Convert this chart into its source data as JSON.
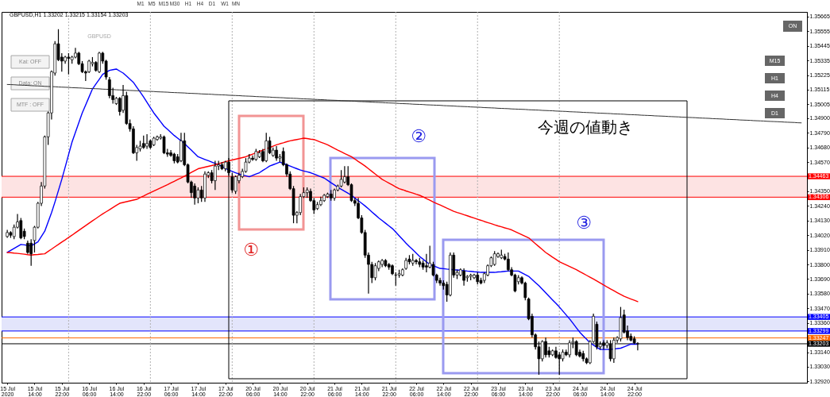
{
  "chart_data": {
    "type": "candlestick",
    "title": "GBPUSD,H1 1.33202 1.33215 1.33154 1.33203",
    "color": "#000000",
    "categories": [
      "15 Jul 2020",
      null,
      null,
      null,
      null,
      null,
      null,
      null,
      "15 Jul 14:00",
      null,
      null,
      null,
      null,
      null,
      null,
      null,
      "15 Jul 22:00",
      null,
      null,
      null,
      null,
      null,
      null,
      null,
      "16 Jul 06:00",
      null,
      null,
      null,
      null,
      null,
      null,
      null,
      "16 Jul 14:00",
      null,
      null,
      null,
      null,
      null,
      null,
      null,
      "16 Jul 22:00",
      null,
      null,
      null,
      null,
      null,
      null,
      null,
      "17 Jul 06:00",
      null,
      null,
      null,
      null,
      null,
      null,
      null,
      "17 Jul 14:00",
      null,
      null,
      null,
      null,
      null,
      null,
      null,
      "17 Jul 22:00",
      null,
      null,
      null,
      null,
      null,
      null,
      null,
      "20 Jul 06:00",
      null,
      null,
      null,
      null,
      null,
      null,
      null,
      "20 Jul 14:00",
      null,
      null,
      null,
      null,
      null,
      null,
      null,
      "20 Jul 22:00",
      null,
      null,
      null,
      null,
      null,
      null,
      null,
      "21 Jul 06:00",
      null,
      null,
      null,
      null,
      null,
      null,
      null,
      "21 Jul 14:00",
      null,
      null,
      null,
      null,
      null,
      null,
      null,
      "21 Jul 22:00",
      null,
      null,
      null,
      null,
      null,
      null,
      null,
      "22 Jul 06:00",
      null,
      null,
      null,
      null,
      null,
      null,
      null,
      "22 Jul 14:00",
      null,
      null,
      null,
      null,
      null,
      null,
      null,
      "22 Jul 22:00",
      null,
      null,
      null,
      null,
      null,
      null,
      null,
      "23 Jul 06:00",
      null,
      null,
      null,
      null,
      null,
      null,
      null,
      "23 Jul 14:00",
      null,
      null,
      null,
      null,
      null,
      null,
      null,
      "23 Jul 22:00",
      null,
      null,
      null,
      null,
      null,
      null,
      null,
      "24 Jul 06:00",
      null,
      null,
      null,
      null,
      null,
      null,
      null,
      "24 Jul 14:00",
      null,
      null,
      null,
      null,
      null,
      null,
      null,
      "24 Jul 22:00",
      null,
      null,
      null,
      null,
      null,
      null,
      null,
      null,
      null,
      null,
      null,
      null,
      null,
      null,
      null,
      null,
      null,
      null,
      null,
      null,
      null,
      null,
      null,
      null,
      null,
      null,
      null,
      null,
      null,
      null,
      null,
      null,
      null,
      null,
      null,
      null,
      null,
      null,
      null,
      null,
      null,
      null,
      null,
      null,
      null,
      null,
      null,
      null,
      null
    ],
    "ohlc": [
      [
        1.3401,
        1.3406,
        1.34,
        1.3404
      ],
      [
        1.3404,
        1.3405,
        1.34,
        1.3402
      ],
      [
        1.3401,
        1.341,
        1.3399,
        1.3408
      ],
      [
        1.3408,
        1.3418,
        1.3407,
        1.3412
      ],
      [
        1.3413,
        1.3415,
        1.3399,
        1.34
      ],
      [
        1.3405,
        1.3407,
        1.3399,
        1.3401
      ],
      [
        1.3396,
        1.3398,
        1.3388,
        1.3389
      ],
      [
        1.3396,
        1.3399,
        1.3379,
        1.3388
      ],
      [
        1.3398,
        1.3409,
        1.3389,
        1.3408
      ],
      [
        1.3408,
        1.3427,
        1.3407,
        1.3426
      ],
      [
        1.3426,
        1.3442,
        1.3424,
        1.3439
      ],
      [
        1.3439,
        1.3477,
        1.3437,
        1.3476
      ],
      [
        1.3476,
        1.3495,
        1.347,
        1.3494
      ],
      [
        1.3494,
        1.3526,
        1.3489,
        1.3525
      ],
      [
        1.3524,
        1.3548,
        1.3522,
        1.3546
      ],
      [
        1.3546,
        1.3557,
        1.3533,
        1.3534
      ],
      [
        1.3536,
        1.3539,
        1.3525,
        1.3533
      ],
      [
        1.3533,
        1.3537,
        1.3531,
        1.3536
      ],
      [
        1.3536,
        1.3539,
        1.3523,
        1.3535
      ],
      [
        1.3534,
        1.3537,
        1.3531,
        1.3536
      ],
      [
        1.3536,
        1.3543,
        1.3535,
        1.3539
      ],
      [
        1.3539,
        1.354,
        1.353,
        1.3531
      ],
      [
        1.3531,
        1.3533,
        1.3524,
        1.3525
      ],
      [
        1.3525,
        1.3526,
        1.3518,
        1.3524
      ],
      [
        1.3525,
        1.3534,
        1.3524,
        1.3533
      ],
      [
        1.3531,
        1.3536,
        1.3529,
        1.3532
      ],
      [
        1.3532,
        1.3533,
        1.3525,
        1.3526
      ],
      [
        1.3525,
        1.354,
        1.3524,
        1.3539
      ],
      [
        1.3539,
        1.354,
        1.3531,
        1.3533
      ],
      [
        1.3533,
        1.3534,
        1.3519,
        1.3521
      ],
      [
        1.3519,
        1.3521,
        1.3505,
        1.3507
      ],
      [
        1.3507,
        1.3513,
        1.3501,
        1.3504
      ],
      [
        1.3501,
        1.3506,
        1.35,
        1.3505
      ],
      [
        1.3505,
        1.3506,
        1.3492,
        1.3495
      ],
      [
        1.3496,
        1.3515,
        1.3494,
        1.3507
      ],
      [
        1.3507,
        1.351,
        1.3485,
        1.3486
      ],
      [
        1.3486,
        1.3489,
        1.348,
        1.3482
      ],
      [
        1.3482,
        1.3484,
        1.3463,
        1.3464
      ],
      [
        1.3464,
        1.347,
        1.3458,
        1.3468
      ],
      [
        1.3467,
        1.3473,
        1.3465,
        1.3469
      ],
      [
        1.3471,
        1.3477,
        1.3467,
        1.3468
      ],
      [
        1.3469,
        1.3478,
        1.3467,
        1.3471
      ],
      [
        1.3473,
        1.3474,
        1.3467,
        1.3468
      ],
      [
        1.347,
        1.3476,
        1.3469,
        1.3475
      ],
      [
        1.3474,
        1.3477,
        1.3473,
        1.3476
      ],
      [
        1.3475,
        1.3478,
        1.3474,
        1.3476
      ],
      [
        1.3476,
        1.3477,
        1.3463,
        1.3464
      ],
      [
        1.3464,
        1.3467,
        1.3461,
        1.3463
      ],
      [
        1.3464,
        1.3466,
        1.3461,
        1.3462
      ],
      [
        1.3463,
        1.3464,
        1.3456,
        1.3458
      ],
      [
        1.3461,
        1.3463,
        1.3456,
        1.3457
      ],
      [
        1.3458,
        1.3479,
        1.3457,
        1.3473
      ],
      [
        1.3473,
        1.3479,
        1.3454,
        1.3455
      ],
      [
        1.3455,
        1.3456,
        1.3441,
        1.3442
      ],
      [
        1.3442,
        1.3443,
        1.343,
        1.3434
      ],
      [
        1.3439,
        1.3441,
        1.3425,
        1.343
      ],
      [
        1.343,
        1.3438,
        1.3426,
        1.3436
      ],
      [
        1.3436,
        1.3439,
        1.3427,
        1.343
      ],
      [
        1.343,
        1.345,
        1.3427,
        1.3448
      ],
      [
        1.3447,
        1.345,
        1.3445,
        1.3449
      ],
      [
        1.3449,
        1.3451,
        1.3441,
        1.3443
      ],
      [
        1.3443,
        1.3458,
        1.3436,
        1.3454
      ],
      [
        1.3454,
        1.3458,
        1.3451,
        1.3455
      ],
      [
        1.3455,
        1.3457,
        1.3451,
        1.3452
      ],
      [
        1.3452,
        1.3458,
        1.345,
        1.3457
      ],
      [
        1.3457,
        1.346,
        1.3447,
        1.3449
      ],
      [
        1.3446,
        1.3449,
        1.3434,
        1.3436
      ],
      [
        1.3435,
        1.3447,
        1.3433,
        1.3446
      ],
      [
        1.3443,
        1.3449,
        1.3441,
        1.3447
      ],
      [
        1.3446,
        1.3452,
        1.3445,
        1.345
      ],
      [
        1.345,
        1.346,
        1.3449,
        1.3457
      ],
      [
        1.3457,
        1.3463,
        1.3456,
        1.346
      ],
      [
        1.346,
        1.3462,
        1.3458,
        1.3459
      ],
      [
        1.3459,
        1.3467,
        1.3458,
        1.3465
      ],
      [
        1.3461,
        1.3466,
        1.346,
        1.3464
      ],
      [
        1.3465,
        1.3467,
        1.3457,
        1.3458
      ],
      [
        1.3458,
        1.3479,
        1.3457,
        1.3473
      ],
      [
        1.3473,
        1.3476,
        1.3463,
        1.3464
      ],
      [
        1.3462,
        1.3468,
        1.3461,
        1.3466
      ],
      [
        1.3466,
        1.3469,
        1.3458,
        1.346
      ],
      [
        1.346,
        1.3463,
        1.3457,
        1.3461
      ],
      [
        1.3465,
        1.3468,
        1.3454,
        1.3455
      ],
      [
        1.3455,
        1.3456,
        1.3446,
        1.3448
      ],
      [
        1.3448,
        1.345,
        1.3436,
        1.3437
      ],
      [
        1.3437,
        1.3439,
        1.3411,
        1.3417
      ],
      [
        1.3417,
        1.342,
        1.3411,
        1.3419
      ],
      [
        1.3419,
        1.3433,
        1.3417,
        1.3431
      ],
      [
        1.3431,
        1.3438,
        1.343,
        1.3434
      ],
      [
        1.3434,
        1.3438,
        1.343,
        1.3436
      ],
      [
        1.3435,
        1.3437,
        1.3427,
        1.3428
      ],
      [
        1.3428,
        1.343,
        1.3418,
        1.3421
      ],
      [
        1.3422,
        1.3427,
        1.3421,
        1.3425
      ],
      [
        1.3425,
        1.3431,
        1.3424,
        1.3428
      ],
      [
        1.3428,
        1.3433,
        1.3427,
        1.3432
      ],
      [
        1.3431,
        1.3434,
        1.343,
        1.3433
      ],
      [
        1.3433,
        1.3436,
        1.3428,
        1.343
      ],
      [
        1.343,
        1.3437,
        1.3428,
        1.3436
      ],
      [
        1.3436,
        1.344,
        1.3435,
        1.3439
      ],
      [
        1.3439,
        1.3451,
        1.3438,
        1.3444
      ],
      [
        1.3442,
        1.3454,
        1.3441,
        1.3446
      ],
      [
        1.3446,
        1.3454,
        1.3439,
        1.344
      ],
      [
        1.344,
        1.3441,
        1.3427,
        1.3428
      ],
      [
        1.3428,
        1.343,
        1.3424,
        1.3426
      ],
      [
        1.3426,
        1.343,
        1.3414,
        1.3415
      ],
      [
        1.3415,
        1.3417,
        1.3403,
        1.3404
      ],
      [
        1.3404,
        1.3406,
        1.3385,
        1.3387
      ],
      [
        1.3387,
        1.3389,
        1.3358,
        1.338
      ],
      [
        1.338,
        1.3382,
        1.3366,
        1.337
      ],
      [
        1.337,
        1.3381,
        1.3368,
        1.3379
      ],
      [
        1.3377,
        1.3383,
        1.3375,
        1.3382
      ],
      [
        1.338,
        1.3384,
        1.3378,
        1.3383
      ],
      [
        1.3383,
        1.3384,
        1.3378,
        1.3379
      ],
      [
        1.338,
        1.3381,
        1.3376,
        1.3378
      ],
      [
        1.3379,
        1.338,
        1.3372,
        1.3373
      ],
      [
        1.3372,
        1.3374,
        1.3364,
        1.3372
      ],
      [
        1.3372,
        1.3376,
        1.337,
        1.3373
      ],
      [
        1.3372,
        1.3377,
        1.3371,
        1.3376
      ],
      [
        1.3377,
        1.3385,
        1.3376,
        1.3383
      ],
      [
        1.3384,
        1.3387,
        1.338,
        1.3382
      ],
      [
        1.3381,
        1.3388,
        1.3379,
        1.3383
      ],
      [
        1.3383,
        1.3384,
        1.338,
        1.3382
      ],
      [
        1.3382,
        1.3385,
        1.3378,
        1.338
      ],
      [
        1.3381,
        1.3383,
        1.3376,
        1.3378
      ],
      [
        1.3379,
        1.3388,
        1.3374,
        1.3378
      ],
      [
        1.3378,
        1.3394,
        1.3377,
        1.3381
      ],
      [
        1.338,
        1.3382,
        1.3371,
        1.3372
      ],
      [
        1.3372,
        1.3373,
        1.3366,
        1.3368
      ],
      [
        1.3368,
        1.337,
        1.3364,
        1.3366
      ],
      [
        1.3366,
        1.3368,
        1.3361,
        1.3364
      ],
      [
        1.3365,
        1.3367,
        1.3352,
        1.3357
      ],
      [
        1.3357,
        1.3389,
        1.3356,
        1.3387
      ],
      [
        1.3387,
        1.3389,
        1.337,
        1.3372
      ],
      [
        1.3372,
        1.3376,
        1.3369,
        1.3374
      ],
      [
        1.3372,
        1.3377,
        1.3371,
        1.3376
      ],
      [
        1.3375,
        1.3377,
        1.3364,
        1.3368
      ],
      [
        1.337,
        1.3372,
        1.3367,
        1.3371
      ],
      [
        1.3371,
        1.3373,
        1.3368,
        1.3372
      ],
      [
        1.337,
        1.3373,
        1.3369,
        1.3372
      ],
      [
        1.3372,
        1.3374,
        1.3365,
        1.3367
      ],
      [
        1.3368,
        1.337,
        1.3365,
        1.3366
      ],
      [
        1.3368,
        1.3374,
        1.3366,
        1.3373
      ],
      [
        1.3372,
        1.338,
        1.3371,
        1.3379
      ],
      [
        1.3379,
        1.3386,
        1.3378,
        1.3385
      ],
      [
        1.338,
        1.339,
        1.3379,
        1.3388
      ],
      [
        1.3386,
        1.3389,
        1.3385,
        1.3388
      ],
      [
        1.3385,
        1.3391,
        1.3384,
        1.3387
      ],
      [
        1.3386,
        1.3388,
        1.3383,
        1.3384
      ],
      [
        1.3384,
        1.3389,
        1.3375,
        1.3376
      ],
      [
        1.3376,
        1.3378,
        1.3371,
        1.3372
      ],
      [
        1.3372,
        1.3373,
        1.3359,
        1.336
      ],
      [
        1.3367,
        1.3372,
        1.3365,
        1.337
      ],
      [
        1.337,
        1.3371,
        1.3365,
        1.3366
      ],
      [
        1.3366,
        1.3367,
        1.3353,
        1.3355
      ],
      [
        1.3354,
        1.3355,
        1.3338,
        1.3339
      ],
      [
        1.3341,
        1.3343,
        1.3325,
        1.3327
      ],
      [
        1.3327,
        1.3328,
        1.3316,
        1.3318
      ],
      [
        1.3318,
        1.3322,
        1.3297,
        1.3309
      ],
      [
        1.3309,
        1.3323,
        1.3307,
        1.3322
      ],
      [
        1.3322,
        1.3325,
        1.331,
        1.3312
      ],
      [
        1.3315,
        1.3318,
        1.331,
        1.3312
      ],
      [
        1.3312,
        1.3316,
        1.3311,
        1.3315
      ],
      [
        1.3315,
        1.3318,
        1.3309,
        1.331
      ],
      [
        1.3312,
        1.3314,
        1.3297,
        1.3309
      ],
      [
        1.3309,
        1.3316,
        1.3307,
        1.3314
      ],
      [
        1.3314,
        1.3316,
        1.3311,
        1.3312
      ],
      [
        1.3312,
        1.3323,
        1.331,
        1.3321
      ],
      [
        1.3321,
        1.3325,
        1.3317,
        1.3322
      ],
      [
        1.3322,
        1.3323,
        1.3311,
        1.3312
      ],
      [
        1.3314,
        1.3316,
        1.331,
        1.3311
      ],
      [
        1.3313,
        1.3315,
        1.3307,
        1.3309
      ],
      [
        1.3309,
        1.331,
        1.3305,
        1.3306
      ],
      [
        1.3306,
        1.3323,
        1.3305,
        1.3322
      ],
      [
        1.3322,
        1.3343,
        1.3321,
        1.3341
      ],
      [
        1.3335,
        1.3337,
        1.3316,
        1.3318
      ],
      [
        1.3318,
        1.3322,
        1.3316,
        1.332
      ],
      [
        1.3321,
        1.3323,
        1.3316,
        1.3319
      ],
      [
        1.3319,
        1.3323,
        1.3317,
        1.3321
      ],
      [
        1.332,
        1.3323,
        1.3307,
        1.3309
      ],
      [
        1.3309,
        1.3325,
        1.3306,
        1.3323
      ],
      [
        1.3323,
        1.3326,
        1.3321,
        1.3325
      ],
      [
        1.3324,
        1.3348,
        1.3322,
        1.334
      ],
      [
        1.3342,
        1.3346,
        1.3328,
        1.3329
      ],
      [
        1.333,
        1.3334,
        1.3323,
        1.3325
      ],
      [
        1.3326,
        1.3328,
        1.3322,
        1.3323
      ],
      [
        1.3324,
        1.3326,
        1.332,
        1.3321
      ],
      [
        1.33202,
        1.33215,
        1.33154,
        1.33203
      ],
      null,
      null,
      null,
      null,
      null,
      null,
      null,
      null,
      null,
      null,
      null,
      null,
      null,
      null,
      null,
      null,
      null,
      null,
      null,
      null,
      null,
      null,
      null,
      null,
      null,
      null,
      null,
      null,
      null,
      null,
      null,
      null,
      null,
      null,
      null,
      null,
      null,
      null,
      null,
      null,
      null,
      null,
      null,
      null,
      null,
      null,
      null,
      null
    ],
    "series": [
      {
        "type": "line",
        "color": "#0000ff",
        "values": [
          1.3389,
          1.33905,
          1.3392,
          1.33935,
          1.3395,
          1.33947,
          1.33943,
          1.3394,
          1.33955,
          1.3397,
          1.3401,
          1.3405,
          1.3412,
          1.3419,
          1.3427,
          1.34355,
          1.3444,
          1.34533,
          1.34627,
          1.3472,
          1.34793,
          1.34867,
          1.3494,
          1.35,
          1.3506,
          1.3512,
          1.35157,
          1.35193,
          1.3523,
          1.35245,
          1.3526,
          1.35265,
          1.3527,
          1.35255,
          1.3524,
          1.35217,
          1.35193,
          1.3517,
          1.35133,
          1.35097,
          1.3506,
          1.3502,
          1.3498,
          1.3494,
          1.34907,
          1.34873,
          1.3484,
          1.34817,
          1.34793,
          1.3477,
          1.3475,
          1.3473,
          1.3471,
          1.34685,
          1.3466,
          1.34635,
          1.3461,
          1.346,
          1.3459,
          1.3458,
          1.3457,
          1.3456,
          1.3455,
          1.34537,
          1.34523,
          1.3451,
          1.345,
          1.3449,
          1.3448,
          1.34473,
          1.34467,
          1.3446,
          1.3447,
          1.3448,
          1.3449,
          1.34507,
          1.34523,
          1.3454,
          1.3455,
          1.3456,
          1.3457,
          1.3456,
          1.3455,
          1.3454,
          1.3453,
          1.3452,
          1.3451,
          1.34503,
          1.34497,
          1.3449,
          1.3448,
          1.3447,
          1.3446,
          1.3445,
          1.34433,
          1.34415,
          1.34398,
          1.3438,
          1.34365,
          1.3435,
          1.34335,
          1.3432,
          1.343,
          1.3428,
          1.3426,
          1.3424,
          1.34218,
          1.34195,
          1.34173,
          1.3415,
          1.3413,
          1.3411,
          1.3409,
          1.3407,
          1.34043,
          1.34015,
          1.33988,
          1.3396,
          1.33935,
          1.3391,
          1.33885,
          1.3386,
          1.3384,
          1.3382,
          1.338,
          1.3379,
          1.3378,
          1.3377,
          1.33768,
          1.33765,
          1.33763,
          1.3376,
          1.33758,
          1.33755,
          1.33753,
          1.3375,
          1.33748,
          1.33745,
          1.33743,
          1.3374,
          1.3374,
          1.3374,
          1.3374,
          1.3374,
          1.33743,
          1.33745,
          1.33748,
          1.3375,
          1.3375,
          1.3375,
          1.3375,
          1.33737,
          1.33723,
          1.3371,
          1.33687,
          1.33663,
          1.3364,
          1.33613,
          1.33587,
          1.3356,
          1.33533,
          1.33507,
          1.3348,
          1.3345,
          1.3342,
          1.3339,
          1.33357,
          1.33323,
          1.3329,
          1.33263,
          1.33237,
          1.3321,
          1.33193,
          1.33177,
          1.3316,
          1.3316,
          1.3316,
          1.3316,
          1.33163,
          1.33167,
          1.3317,
          1.3318,
          1.3319,
          1.332,
          1.332,
          1.332,
          null,
          null,
          null,
          null,
          null,
          null,
          null,
          null,
          null,
          null,
          null,
          null,
          null,
          null,
          null,
          null,
          null,
          null,
          null,
          null,
          null,
          null,
          null,
          null,
          null,
          null,
          null,
          null,
          null,
          null,
          null,
          null,
          null,
          null,
          null,
          null,
          null,
          null,
          null,
          null,
          null,
          null,
          null,
          null,
          null,
          null,
          null,
          null
        ]
      },
      {
        "type": "line",
        "color": "#ff0000",
        "values": [
          1.3389,
          1.33888,
          1.33885,
          1.33883,
          1.3388,
          1.33877,
          1.33873,
          1.3387,
          1.33873,
          1.33875,
          1.33878,
          1.3388,
          1.33898,
          1.33915,
          1.33933,
          1.3395,
          1.33968,
          1.33985,
          1.34003,
          1.3402,
          1.34038,
          1.34056,
          1.34074,
          1.34092,
          1.3411,
          1.34128,
          1.34145,
          1.34163,
          1.3418,
          1.34196,
          1.34212,
          1.34228,
          1.34244,
          1.3426,
          1.34266,
          1.34272,
          1.34278,
          1.34284,
          1.3429,
          1.34303,
          1.34315,
          1.34328,
          1.3434,
          1.34352,
          1.34364,
          1.34376,
          1.34388,
          1.344,
          1.34413,
          1.34425,
          1.34438,
          1.3445,
          1.34464,
          1.34478,
          1.34492,
          1.34506,
          1.3452,
          1.34526,
          1.34532,
          1.34538,
          1.34544,
          1.3455,
          1.34558,
          1.34565,
          1.34573,
          1.3458,
          1.34586,
          1.34592,
          1.34598,
          1.34604,
          1.3461,
          1.3462,
          1.3463,
          1.3464,
          1.3465,
          1.3466,
          1.3467,
          1.3468,
          1.3469,
          1.347,
          1.34708,
          1.34715,
          1.34723,
          1.3473,
          1.34735,
          1.3474,
          1.34745,
          1.3475,
          1.34747,
          1.34743,
          1.3474,
          1.3473,
          1.3472,
          1.3471,
          1.347,
          1.34687,
          1.34673,
          1.3466,
          1.34648,
          1.34635,
          1.34623,
          1.3461,
          1.34593,
          1.34575,
          1.34558,
          1.3454,
          1.3452,
          1.345,
          1.3448,
          1.3446,
          1.3444,
          1.34426,
          1.34412,
          1.34398,
          1.34384,
          1.3437,
          1.34362,
          1.34353,
          1.34345,
          1.34337,
          1.34328,
          1.3432,
          1.34308,
          1.34295,
          1.34283,
          1.3427,
          1.34258,
          1.34247,
          1.34235,
          1.34223,
          1.34212,
          1.342,
          1.34191,
          1.34183,
          1.34174,
          1.34166,
          1.34157,
          1.34149,
          1.3414,
          1.34132,
          1.34123,
          1.34115,
          1.34107,
          1.34098,
          1.3409,
          1.34083,
          1.34075,
          1.34068,
          1.3406,
          1.34048,
          1.34036,
          1.34024,
          1.34012,
          1.34,
          1.33978,
          1.33956,
          1.33934,
          1.33912,
          1.3389,
          1.33873,
          1.33855,
          1.33838,
          1.3382,
          1.33808,
          1.33796,
          1.33784,
          1.33772,
          1.3376,
          1.33746,
          1.33732,
          1.33718,
          1.33704,
          1.3369,
          1.33675,
          1.3366,
          1.33645,
          1.3363,
          1.33616,
          1.33602,
          1.33588,
          1.33574,
          1.3356,
          1.3355,
          1.3354,
          1.3353,
          1.3352,
          null,
          null,
          null,
          null,
          null,
          null,
          null,
          null,
          null,
          null,
          null,
          null,
          null,
          null,
          null,
          null,
          null,
          null,
          null,
          null,
          null,
          null,
          null,
          null,
          null,
          null,
          null,
          null,
          null,
          null,
          null,
          null,
          null,
          null,
          null,
          null,
          null,
          null,
          null,
          null,
          null,
          null,
          null,
          null,
          null,
          null,
          null,
          null
        ]
      },
      {
        "type": "line",
        "color": "#303030",
        "values": [
          1.35154,
          1.35153,
          1.35152,
          1.3515,
          1.35149,
          1.35148,
          1.35147,
          1.35145,
          1.35144,
          1.35143,
          1.35142,
          1.3514,
          1.35139,
          1.35138,
          1.35137,
          1.35135,
          1.35134,
          1.35133,
          1.35132,
          1.3513,
          1.35129,
          1.35128,
          1.35127,
          1.35125,
          1.35124,
          1.35123,
          1.35122,
          1.35121,
          1.35119,
          1.35118,
          1.35117,
          1.35116,
          1.35114,
          1.35113,
          1.35112,
          1.35111,
          1.35109,
          1.35108,
          1.35107,
          1.35106,
          1.35104,
          1.35103,
          1.35102,
          1.35101,
          1.35099,
          1.35098,
          1.35097,
          1.35096,
          1.35094,
          1.35093,
          1.35092,
          1.35091,
          1.3509,
          1.35088,
          1.35087,
          1.35086,
          1.35085,
          1.35083,
          1.35082,
          1.35081,
          1.3508,
          1.35078,
          1.35077,
          1.35076,
          1.35075,
          1.35073,
          1.35072,
          1.35071,
          1.3507,
          1.35068,
          1.35067,
          1.35066,
          1.35065,
          1.35063,
          1.35062,
          1.35061,
          1.3506,
          1.35059,
          1.35057,
          1.35056,
          1.35055,
          1.35054,
          1.35052,
          1.35051,
          1.3505,
          1.35049,
          1.35047,
          1.35046,
          1.35045,
          1.35044,
          1.35042,
          1.35041,
          1.3504,
          1.35039,
          1.35037,
          1.35036,
          1.35035,
          1.35034,
          1.35032,
          1.35031,
          1.3503,
          1.35029,
          1.35028,
          1.35026,
          1.35025,
          1.35024,
          1.35023,
          1.35021,
          1.3502,
          1.35019,
          1.35018,
          1.35016,
          1.35015,
          1.35014,
          1.35013,
          1.35011,
          1.3501,
          1.35009,
          1.35008,
          1.35006,
          1.35005,
          1.35004,
          1.35003,
          1.35001,
          1.35,
          1.34999,
          1.34998,
          1.34997,
          1.34995,
          1.34994,
          1.34993,
          1.34992,
          1.3499,
          1.34989,
          1.34988,
          1.34987,
          1.34985,
          1.34984,
          1.34983,
          1.34982,
          1.3498,
          1.34979,
          1.34978,
          1.34977,
          1.34975,
          1.34974,
          1.34973,
          1.34972,
          1.3497,
          1.34969,
          1.34968,
          1.34967,
          1.34966,
          1.34964,
          1.34963,
          1.34962,
          1.34961,
          1.34959,
          1.34958,
          1.34957,
          1.34956,
          1.34954,
          1.34953,
          1.34952,
          1.34951,
          1.34949,
          1.34948,
          1.34947,
          1.34946,
          1.34944,
          1.34943,
          1.34942,
          1.34941,
          1.34939,
          1.34938,
          1.34937,
          1.34936,
          1.34935,
          1.34933,
          1.34932,
          1.34931,
          1.3493,
          1.34928,
          1.34927,
          1.34926,
          1.34925,
          1.34923,
          1.34922,
          1.34921,
          1.3492,
          1.34918,
          1.34917,
          1.34916,
          1.34915,
          1.34913,
          1.34912,
          1.34911,
          1.3491,
          1.34908,
          1.34907,
          1.34906,
          1.34905,
          1.34904,
          1.34902,
          1.34901,
          1.349,
          1.34899,
          1.34897,
          1.34896,
          1.34895,
          1.34894,
          1.34892,
          1.34891,
          1.3489,
          1.34889,
          1.34887,
          1.34886,
          1.34885,
          1.34884,
          1.34882,
          1.34881,
          1.3488,
          1.34879,
          1.34877,
          1.34876,
          1.34875,
          1.34874,
          1.34873,
          1.34871,
          1.3487,
          1.34869,
          1.34868,
          1.34866,
          1.34865
        ]
      }
    ],
    "ylim": [
      1.3291,
      1.357
    ],
    "yticks": [
      1.35665,
      1.35555,
      1.35445,
      1.35335,
      1.35225,
      1.35115,
      1.35005,
      {
        "value": 1.349,
        "label": "1.34900"
      },
      {
        "value": 1.3479,
        "label": "1.34790"
      },
      {
        "value": 1.3468,
        "label": "1.34680"
      },
      {
        "value": 1.3457,
        "label": "1.34570"
      },
      {
        "value": 1.3435,
        "label": "1.34350"
      },
      {
        "value": 1.3424,
        "label": "1.34240"
      },
      {
        "value": 1.3413,
        "label": "1.34130"
      },
      {
        "value": 1.3402,
        "label": "1.34020"
      },
      {
        "value": 1.3391,
        "label": "1.33910"
      },
      {
        "value": 1.338,
        "label": "1.33800"
      },
      {
        "value": 1.3369,
        "label": "1.33690"
      },
      {
        "value": 1.3358,
        "label": "1.33580"
      },
      {
        "value": 1.3347,
        "label": "1.33470"
      },
      {
        "value": 1.3336,
        "label": "1.33360"
      },
      {
        "value": 1.3314,
        "label": "1.33140"
      },
      {
        "value": 1.3303,
        "label": "1.33030"
      },
      {
        "value": 1.3292,
        "label": "1.32920"
      }
    ],
    "bands": [
      {
        "axis": "y",
        "from": 1.34306,
        "to": 1.34463,
        "color": "#fde3e3"
      },
      {
        "axis": "y",
        "from": 1.33299,
        "to": 1.33405,
        "color": "#e3e5fb"
      }
    ],
    "ref_lines": [
      {
        "axis": "y",
        "value": 1.34463,
        "label": "1.34463",
        "color": "#ff0000"
      },
      {
        "axis": "y",
        "value": 1.34306,
        "label": "1.34306",
        "color": "#ff0000"
      },
      {
        "axis": "y",
        "value": 1.33405,
        "label": "1.33405",
        "color": "#0000ff"
      },
      {
        "axis": "y",
        "value": 1.33299,
        "label": "1.33299",
        "color": "#0000ff"
      },
      {
        "axis": "y",
        "value": 1.33247,
        "label": "1.33247",
        "color": "#ff6600"
      },
      {
        "axis": "y",
        "value": 1.33203,
        "label": "1.33203",
        "color": "#000000"
      }
    ],
    "annotations": [
      "GBPUSD",
      "Kai: OFF",
      "Data: ON",
      "MTF : OFF",
      "ON",
      "M15",
      "H1",
      "H4",
      "D1",
      "M1",
      "M5",
      "M15",
      "M30",
      "H1",
      "H4",
      "D1",
      "W1",
      "MN",
      "①",
      "②",
      "③",
      "今週の値動き"
    ]
  }
}
